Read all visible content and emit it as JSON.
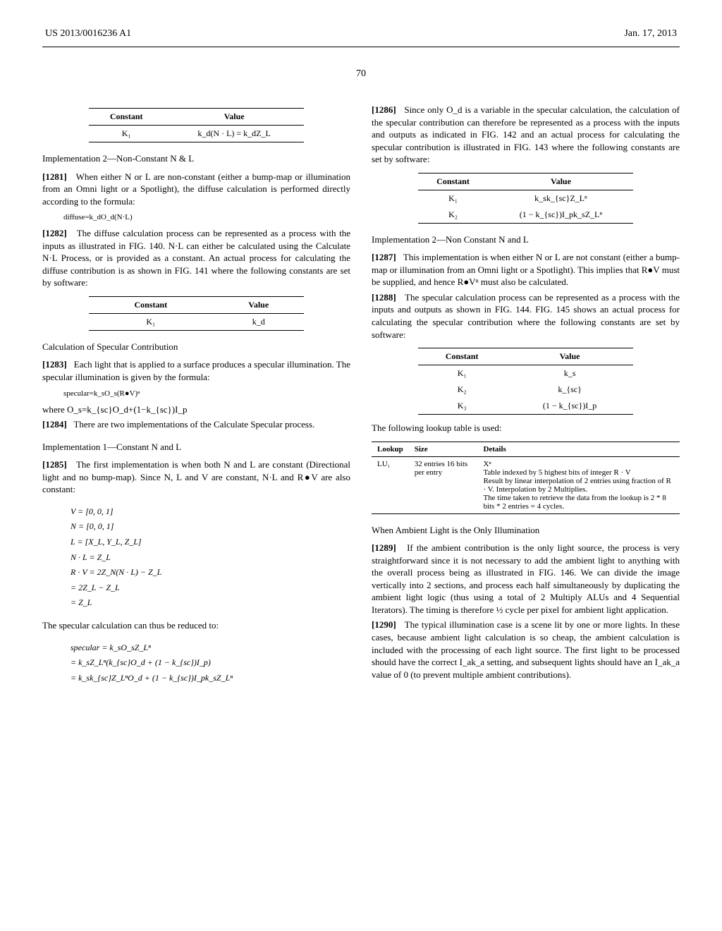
{
  "header": {
    "left": "US 2013/0016236 A1",
    "right": "Jan. 17, 2013"
  },
  "page_number": "70",
  "left_col": {
    "table1": {
      "header": [
        "Constant",
        "Value"
      ],
      "rows": [
        [
          "K₁",
          "k_d(N · L) = k_dZ_L"
        ]
      ]
    },
    "sec1_title": "Implementation 2—Non-Constant N & L",
    "p1281_num": "[1281]",
    "p1281": "When either N or L are non-constant (either a bump-map or illumination from an Omni light or a Spotlight), the diffuse calculation is performed directly according to the formula:",
    "formula1": "diffuse=k_dO_d(N·L)",
    "p1282_num": "[1282]",
    "p1282": "The diffuse calculation process can be represented as a process with the inputs as illustrated in FIG. 140. N·L can either be calculated using the Calculate N·L Process, or is provided as a constant. An actual process for calculating the diffuse contribution is as shown in FIG. 141 where the following constants are set by software:",
    "table2": {
      "header": [
        "Constant",
        "Value"
      ],
      "rows": [
        [
          "K₁",
          "k_d"
        ]
      ]
    },
    "sec2_title": "Calculation of Specular Contribution",
    "p1283_num": "[1283]",
    "p1283": "Each light that is applied to a surface produces a specular illumination. The specular illumination is given by the formula:",
    "formula2": "specular=k_sO_s(R●V)ⁿ",
    "where_line": "where O_s=k_{sc}O_d+(1−k_{sc})I_p",
    "p1284_num": "[1284]",
    "p1284": "There are two implementations of the Calculate Specular process.",
    "sec3_title": "Implementation 1—Constant N and L",
    "p1285_num": "[1285]",
    "p1285": "The first implementation is when both N and L are constant (Directional light and no bump-map). Since N, L and V are constant, N·L and R●V are also constant:",
    "math_lines": [
      "V = [0, 0, 1]",
      "N = [0, 0, 1]",
      "L = [X_L, Y_L, Z_L]",
      "N · L = Z_L",
      "R · V = 2Z_N(N · L) − Z_L",
      "        = 2Z_L − Z_L",
      "        = Z_L"
    ],
    "reduce_line": "The specular calculation can thus be reduced to:",
    "math_lines2": [
      "specular = k_sO_sZ_Lⁿ",
      "           = k_sZ_Lⁿ(k_{sc}O_d + (1 − k_{sc})I_p)",
      "           = k_sk_{sc}Z_LⁿO_d + (1 − k_{sc})I_pk_sZ_Lⁿ"
    ]
  },
  "right_col": {
    "p1286_num": "[1286]",
    "p1286": "Since only O_d is a variable in the specular calculation, the calculation of the specular contribution can therefore be represented as a process with the inputs and outputs as indicated in FIG. 142 and an actual process for calculating the specular contribution is illustrated in FIG. 143 where the following constants are set by software:",
    "table3": {
      "header": [
        "Constant",
        "Value"
      ],
      "rows": [
        [
          "K₁",
          "k_sk_{sc}Z_Lⁿ"
        ],
        [
          "K₂",
          "(1 − k_{sc})I_pk_sZ_Lⁿ"
        ]
      ]
    },
    "sec1_title": "Implementation 2—Non Constant N and L",
    "p1287_num": "[1287]",
    "p1287": "This implementation is when either N or L are not constant (either a bump-map or illumination from an Omni light or a Spotlight). This implies that R●V must be supplied, and hence R●Vⁿ must also be calculated.",
    "p1288_num": "[1288]",
    "p1288": "The specular calculation process can be represented as a process with the inputs and outputs as shown in FIG. 144. FIG. 145 shows an actual process for calculating the specular contribution where the following constants are set by software:",
    "table4": {
      "header": [
        "Constant",
        "Value"
      ],
      "rows": [
        [
          "K₁",
          "k_s"
        ],
        [
          "K₂",
          "k_{sc}"
        ],
        [
          "K₃",
          "(1 − k_{sc})I_p"
        ]
      ]
    },
    "lookup_intro": "The following lookup table is used:",
    "lookup_table": {
      "header": [
        "Lookup",
        "Size",
        "Details"
      ],
      "rows": [
        [
          "LU₁",
          "32 entries 16 bits per entry",
          "Xⁿ\nTable indexed by 5 highest bits of integer R · V\nResult by linear interpolation of 2 entries using fraction of R · V. Interpolation by 2 Multiplies.\nThe time taken to retrieve the data from the lookup is 2 * 8 bits * 2 entries = 4 cycles."
        ]
      ]
    },
    "sec2_title": "When Ambient Light is the Only Illumination",
    "p1289_num": "[1289]",
    "p1289": "If the ambient contribution is the only light source, the process is very straightforward since it is not necessary to add the ambient light to anything with the overall process being as illustrated in FIG. 146. We can divide the image vertically into 2 sections, and process each half simultaneously by duplicating the ambient light logic (thus using a total of 2 Multiply ALUs and 4 Sequential Iterators). The timing is therefore ½ cycle per pixel for ambient light application.",
    "p1290_num": "[1290]",
    "p1290": "The typical illumination case is a scene lit by one or more lights. In these cases, because ambient light calculation is so cheap, the ambient calculation is included with the processing of each light source. The first light to be processed should have the correct I_ak_a setting, and subsequent lights should have an I_ak_a value of 0 (to prevent multiple ambient contributions)."
  }
}
